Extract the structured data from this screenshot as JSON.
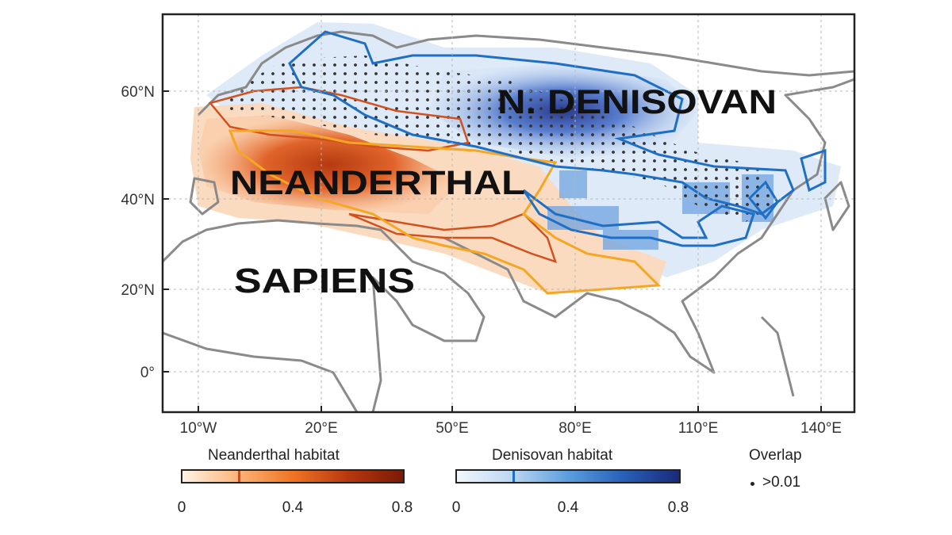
{
  "map": {
    "lat_ticks": [
      {
        "lat": 60,
        "label": "60°N"
      },
      {
        "lat": 40,
        "label": "40°N"
      },
      {
        "lat": 20,
        "label": "20°N"
      },
      {
        "lat": 0,
        "label": "0°"
      }
    ],
    "lon_ticks": [
      {
        "lon": -10,
        "label": "10°W"
      },
      {
        "lon": 20,
        "label": "20°E"
      },
      {
        "lon": 50,
        "label": "50°E"
      },
      {
        "lon": 80,
        "label": "80°E"
      },
      {
        "lon": 110,
        "label": "110°E"
      },
      {
        "lon": 140,
        "label": "140°E"
      }
    ],
    "extent": {
      "lon": [
        -17,
        150
      ],
      "lat": [
        -8,
        75
      ]
    },
    "labels": {
      "denisovan": "N. DENISOVAN",
      "neanderthal": "NEANDERTHAL",
      "sapiens": "SAPIENS"
    },
    "colors": {
      "neanderthal": "#d2501c",
      "denisovan": "#1f6fc4",
      "sapiens_range": "#f5a623",
      "coast": "#8a8a8a"
    }
  },
  "legend": {
    "neanderthal": {
      "title": "Neanderthal habitat",
      "ticks": [
        "0",
        "0.4",
        "0.8"
      ],
      "marker_value": 0.2,
      "gradient": [
        "#fff3e6",
        "#fbb57a",
        "#f07424",
        "#b8380e",
        "#7a1a05"
      ]
    },
    "denisovan": {
      "title": "Denisovan habitat",
      "ticks": [
        "0",
        "0.4",
        "0.8"
      ],
      "marker_value": 0.2,
      "gradient": [
        "#f2f7fd",
        "#bcd6f1",
        "#5b9ede",
        "#2860b8",
        "#1a2a7a"
      ]
    },
    "overlap": {
      "title": "Overlap",
      "entry": ">0.01"
    }
  }
}
